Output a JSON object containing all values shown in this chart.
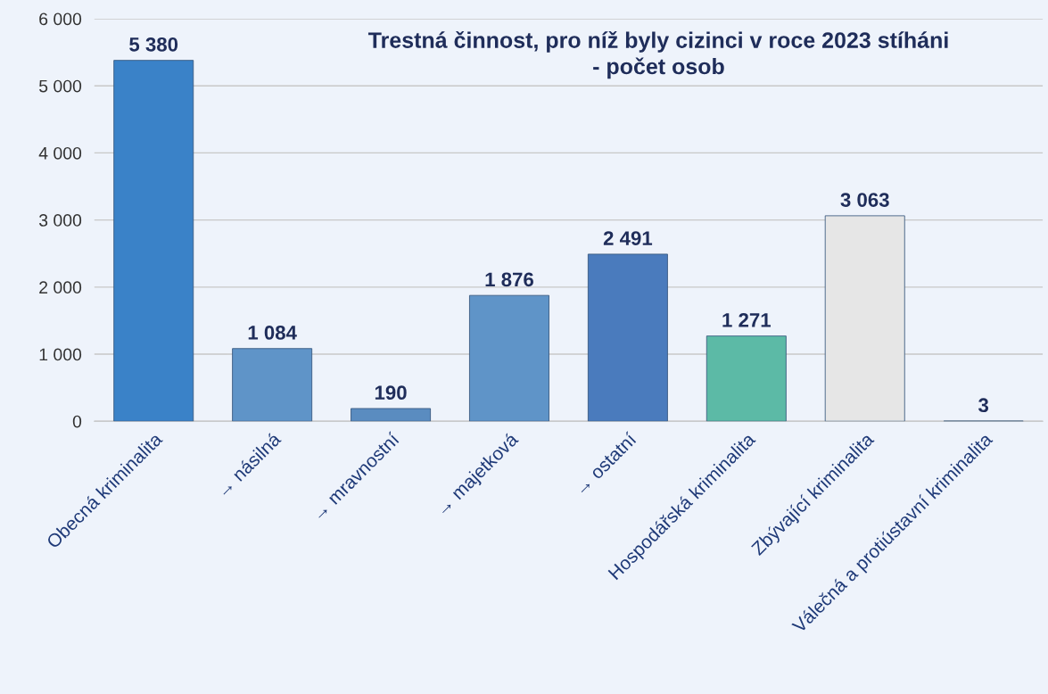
{
  "chart_data": {
    "type": "bar",
    "title": "Trestná činnost, pro níž byly cizinci v roce 2023 stíháni\n- počet osob",
    "categories": [
      "Obecná kriminalita",
      "→ násilná",
      "→ mravnostní",
      "→ majetková",
      "→ ostatní",
      "Hospodářská kriminalita",
      "Zbývající kriminalita",
      "Válečná a protiústavní kriminalita"
    ],
    "values": [
      5380,
      1084,
      190,
      1876,
      2491,
      1271,
      3063,
      3
    ],
    "colors": [
      "#3a82c8",
      "#5f94c8",
      "#5a8cc0",
      "#5f94c8",
      "#4a7bbd",
      "#5cbaa6",
      "#e6e6e6",
      "#4a7bbd"
    ],
    "value_labels": [
      "5 380",
      "1 084",
      "190",
      "1 876",
      "2 491",
      "1 271",
      "3 063",
      "3"
    ],
    "ylim": [
      0,
      6000
    ],
    "yticks": [
      0,
      {
        "value": 1000,
        "label": "1 000"
      },
      {
        "value": 2000,
        "label": "2 000"
      },
      {
        "value": 3000,
        "label": "3 000"
      },
      {
        "value": 4000,
        "label": "4 000"
      },
      {
        "value": 5000,
        "label": "5 000"
      },
      {
        "value": 6000,
        "label": "6 000"
      }
    ],
    "grid": "y",
    "legend": false
  }
}
